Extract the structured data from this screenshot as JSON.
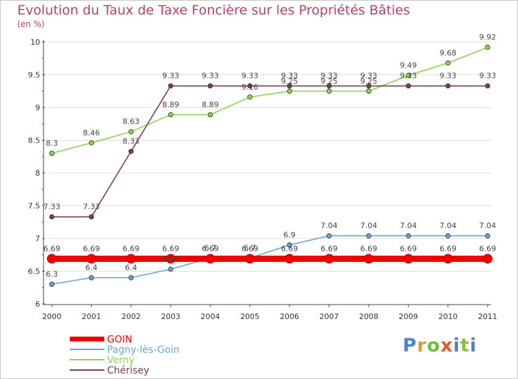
{
  "chart_data": {
    "type": "line",
    "title": "Evolution du Taux de Taxe Foncière sur les Propriétés Bâties",
    "ylabel": "(en %)",
    "xlabel": "",
    "ylim": [
      6,
      10
    ],
    "y_ticks": [
      "6",
      "6.5",
      "7",
      "7.5",
      "8",
      "8.5",
      "9",
      "9.5",
      "10"
    ],
    "categories": [
      "2000",
      "2001",
      "2002",
      "2003",
      "2004",
      "2005",
      "2006",
      "2007",
      "2008",
      "2009",
      "2010",
      "2011"
    ],
    "series": [
      {
        "name": "Verny",
        "color": "#8fd24f",
        "values": [
          8.3,
          8.46,
          8.63,
          8.89,
          8.89,
          9.16,
          9.25,
          9.25,
          9.25,
          9.49,
          9.68,
          9.92
        ],
        "labels": [
          "8.3",
          "8.46",
          "8.63",
          "8.89",
          "8.89",
          "9.16",
          "9.25",
          "9.25",
          "9.25",
          "9.49",
          "9.68",
          "9.92"
        ]
      },
      {
        "name": "Chérisey",
        "color": "#7a3e46",
        "values": [
          7.33,
          7.33,
          8.33,
          9.33,
          9.33,
          9.33,
          9.33,
          9.33,
          9.33,
          9.33,
          9.33,
          9.33
        ],
        "labels": [
          "7.33",
          "7.33",
          "8.33",
          "9.33",
          "9.33",
          "9.33",
          "9.33",
          "9.33",
          "9.33",
          "9.33",
          "9.33",
          "9.33"
        ]
      },
      {
        "name": "Pagny-lès-Goin",
        "color": "#6aa2d2",
        "values": [
          6.3,
          6.4,
          6.4,
          6.53,
          6.7,
          6.7,
          6.9,
          7.04,
          7.04,
          7.04,
          7.04,
          7.04
        ],
        "labels": [
          "6.3",
          "6.4",
          "6.4",
          "6.53",
          "6.7",
          "6.7",
          "6.9",
          "7.04",
          "7.04",
          "7.04",
          "7.04",
          "7.04"
        ]
      },
      {
        "name": "GOIN",
        "color": "#ee0000",
        "values": [
          6.69,
          6.69,
          6.69,
          6.69,
          6.69,
          6.69,
          6.69,
          6.69,
          6.69,
          6.69,
          6.69,
          6.69
        ],
        "labels": [
          "6.69",
          "6.69",
          "6.69",
          "6.69",
          "6.69",
          "6.69",
          "6.69",
          "6.69",
          "6.69",
          "6.69",
          "6.69",
          "6.69"
        ]
      }
    ],
    "legend": [
      "GOIN",
      "Pagny-lès-Goin",
      "Verny",
      "Chérisey"
    ]
  },
  "logo": {
    "letters": [
      "P",
      "r",
      "o",
      "x",
      "i",
      "t",
      "i"
    ],
    "colors": [
      "#4a86c6",
      "#e89a2a",
      "#6cbf3c",
      "#e05b2a",
      "#4a86c6",
      "#8bbf3c",
      "#4a86c6"
    ]
  }
}
